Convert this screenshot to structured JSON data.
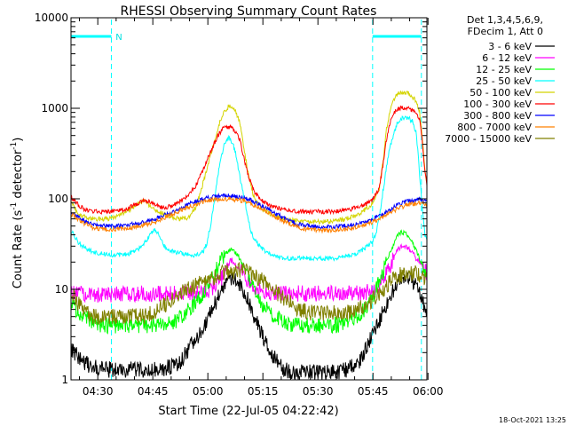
{
  "chart_data": {
    "type": "line",
    "title": "RHESSI Observing Summary Count Rates",
    "xlabel": "Start Time (22-Jul-05 04:22:42)",
    "ylabel_main": "Count Rate (s",
    "ylabel_sup1": "-1",
    "ylabel_mid": " detector",
    "ylabel_sup2": "-1",
    "ylabel_end": ")",
    "y_scale": "log",
    "ylim": [
      1,
      10000
    ],
    "xlim_minutes": [
      0,
      97
    ],
    "x_ticks": [
      {
        "label": "04:30",
        "min": 7.3
      },
      {
        "label": "04:45",
        "min": 22.3
      },
      {
        "label": "05:00",
        "min": 37.3
      },
      {
        "label": "05:15",
        "min": 52.3
      },
      {
        "label": "05:30",
        "min": 67.3
      },
      {
        "label": "05:45",
        "min": 82.3
      },
      {
        "label": "06:00",
        "min": 97.3
      }
    ],
    "y_ticks": [
      {
        "label": "1",
        "v": 1
      },
      {
        "label": "10",
        "v": 10
      },
      {
        "label": "100",
        "v": 100
      },
      {
        "label": "1000",
        "v": 1000
      },
      {
        "label": "10000",
        "v": 10000
      }
    ],
    "legend_header": [
      "Det 1,3,4,5,6,9,",
      "FDecim 1, Att 0"
    ],
    "legend_placement": "top-right outside",
    "flag_label": "N",
    "timestamp": "18-Oct-2021 13:25",
    "night_markers_min": [
      0,
      11,
      82.2,
      95.5
    ],
    "night_bars": [
      [
        0,
        11
      ],
      [
        82.2,
        95.5
      ]
    ],
    "series": [
      {
        "name": "3 - 6 keV",
        "color": "#000000",
        "x": [
          0,
          3,
          6,
          9,
          12,
          15,
          18,
          21,
          24,
          27,
          30,
          33,
          36,
          38,
          40,
          42,
          44,
          46,
          48,
          50,
          52,
          54,
          56,
          58,
          60,
          63,
          66,
          69,
          72,
          75,
          78,
          80,
          82,
          84,
          86,
          88,
          89,
          90,
          91,
          92,
          93,
          94,
          95,
          96,
          97
        ],
        "y": [
          2.2,
          1.6,
          1.4,
          1.3,
          1.3,
          1.3,
          1.3,
          1.3,
          1.3,
          1.4,
          1.6,
          2.5,
          3.5,
          5.5,
          8,
          11,
          13,
          11,
          8,
          5,
          3.2,
          2.2,
          1.6,
          1.3,
          1.2,
          1.2,
          1.2,
          1.2,
          1.2,
          1.3,
          1.5,
          2,
          3,
          4.5,
          7,
          10,
          12,
          14,
          14,
          13,
          12,
          11,
          9,
          7,
          6
        ]
      },
      {
        "name": "6 - 12 keV",
        "color": "#ff00ff",
        "x": [
          0,
          5,
          10,
          15,
          20,
          25,
          30,
          35,
          38,
          40,
          42,
          44,
          46,
          48,
          50,
          55,
          60,
          65,
          70,
          75,
          80,
          82,
          84,
          86,
          88,
          89,
          90,
          91,
          92,
          93,
          94,
          95,
          96,
          97
        ],
        "y": [
          9,
          8.8,
          8.8,
          8.8,
          9,
          9,
          9,
          9,
          10,
          12,
          15,
          20,
          17,
          12,
          10,
          9,
          9,
          9,
          9,
          9,
          9.2,
          9.5,
          11,
          15,
          22,
          27,
          30,
          30,
          28,
          26,
          22,
          20,
          17,
          15
        ]
      },
      {
        "name": "12 - 25 keV",
        "color": "#00ff00",
        "x": [
          0,
          2,
          5,
          8,
          10,
          15,
          20,
          25,
          28,
          30,
          32,
          35,
          38,
          40,
          42,
          44,
          46,
          48,
          50,
          52,
          55,
          58,
          60,
          65,
          70,
          72,
          75,
          78,
          80,
          82,
          84,
          86,
          88,
          89,
          90,
          91,
          92,
          93,
          94,
          95,
          96,
          97
        ],
        "y": [
          7,
          5.5,
          4.5,
          4,
          4,
          4,
          4,
          4,
          4.2,
          5,
          6,
          8,
          12,
          18,
          25,
          28,
          22,
          15,
          10,
          7,
          5,
          4.5,
          4,
          4,
          4,
          4,
          4.2,
          5,
          6,
          8,
          12,
          20,
          32,
          40,
          43,
          42,
          38,
          33,
          27,
          22,
          18,
          15
        ]
      },
      {
        "name": "25 - 50 keV",
        "color": "#00ffff",
        "x": [
          0,
          2,
          4,
          6,
          8,
          10,
          12,
          14,
          16,
          18,
          20,
          21,
          22,
          23,
          24,
          25,
          26,
          28,
          30,
          32,
          34,
          36,
          37,
          38,
          39,
          40,
          41,
          42,
          43,
          44,
          45,
          46,
          47,
          48,
          49,
          50,
          52,
          55,
          58,
          60,
          62,
          65,
          68,
          70,
          72,
          75,
          78,
          80,
          82,
          83,
          84,
          85,
          86,
          86.5,
          87,
          88,
          89,
          90,
          91,
          92,
          93,
          94,
          94.5,
          95,
          95.5,
          96,
          96.5,
          97
        ],
        "y": [
          45,
          33,
          28,
          26,
          25,
          24,
          24,
          24,
          25,
          27,
          33,
          37,
          43,
          45,
          40,
          33,
          28,
          26,
          25,
          24,
          24,
          26,
          32,
          50,
          90,
          180,
          300,
          420,
          470,
          420,
          300,
          180,
          110,
          70,
          45,
          35,
          28,
          24,
          22,
          22,
          22,
          22,
          22,
          22,
          22,
          23,
          25,
          28,
          33,
          40,
          60,
          120,
          220,
          300,
          380,
          520,
          700,
          780,
          790,
          780,
          720,
          550,
          350,
          190,
          110,
          60,
          40,
          35
        ]
      },
      {
        "name": "50 - 100 keV",
        "color": "#d4d400",
        "x": [
          0,
          2,
          4,
          6,
          8,
          10,
          12,
          14,
          16,
          18,
          20,
          22,
          24,
          26,
          28,
          30,
          32,
          34,
          36,
          38,
          40,
          41,
          42,
          43,
          44,
          45,
          46,
          47,
          48,
          49,
          50,
          52,
          55,
          58,
          60,
          62,
          65,
          68,
          70,
          72,
          75,
          78,
          80,
          82,
          84,
          85,
          86,
          87,
          88,
          89,
          90,
          91,
          92,
          93,
          94,
          95,
          95.5,
          96,
          96.5,
          97
        ],
        "y": [
          90,
          68,
          62,
          60,
          60,
          60,
          62,
          68,
          75,
          88,
          95,
          80,
          72,
          66,
          62,
          60,
          62,
          80,
          150,
          300,
          600,
          800,
          950,
          1050,
          1000,
          900,
          700,
          400,
          220,
          140,
          100,
          78,
          65,
          60,
          58,
          57,
          56,
          56,
          56,
          57,
          60,
          66,
          75,
          88,
          130,
          250,
          600,
          950,
          1250,
          1450,
          1500,
          1500,
          1450,
          1350,
          1200,
          900,
          600,
          350,
          200,
          150
        ]
      },
      {
        "name": "100 - 300 keV",
        "color": "#ff0000",
        "x": [
          0,
          2,
          4,
          6,
          8,
          10,
          12,
          14,
          16,
          18,
          20,
          22,
          24,
          26,
          28,
          30,
          32,
          34,
          36,
          38,
          40,
          41,
          42,
          43,
          44,
          45,
          46,
          47,
          48,
          49,
          50,
          52,
          55,
          58,
          60,
          62,
          65,
          68,
          70,
          72,
          75,
          78,
          80,
          82,
          84,
          85,
          86,
          87,
          88,
          89,
          90,
          91,
          92,
          93,
          94,
          95,
          95.5,
          96,
          96.5,
          97
        ],
        "y": [
          105,
          85,
          75,
          72,
          72,
          72,
          73,
          75,
          80,
          88,
          96,
          90,
          82,
          80,
          85,
          95,
          110,
          140,
          210,
          330,
          500,
          570,
          620,
          620,
          600,
          550,
          450,
          300,
          200,
          150,
          120,
          95,
          82,
          76,
          74,
          73,
          72,
          72,
          72,
          73,
          75,
          80,
          85,
          95,
          130,
          230,
          450,
          700,
          880,
          980,
          1020,
          1020,
          1000,
          950,
          880,
          750,
          550,
          320,
          200,
          140
        ]
      },
      {
        "name": "300 - 800 keV",
        "color": "#0000ff",
        "x": [
          0,
          3,
          6,
          9,
          12,
          15,
          18,
          21,
          24,
          27,
          30,
          33,
          36,
          39,
          42,
          44,
          46,
          48,
          50,
          53,
          56,
          59,
          62,
          65,
          68,
          71,
          74,
          77,
          80,
          83,
          86,
          89,
          92,
          95,
          97
        ],
        "y": [
          72,
          58,
          52,
          50,
          50,
          51,
          53,
          57,
          62,
          70,
          80,
          90,
          100,
          106,
          108,
          107,
          104,
          100,
          92,
          80,
          68,
          58,
          52,
          50,
          49,
          49,
          50,
          52,
          55,
          62,
          72,
          85,
          95,
          98,
          96
        ]
      },
      {
        "name": "800 - 7000 keV",
        "color": "#ff8000",
        "x": [
          0,
          3,
          6,
          9,
          12,
          15,
          18,
          21,
          24,
          27,
          30,
          33,
          36,
          39,
          42,
          44,
          46,
          48,
          50,
          53,
          56,
          59,
          62,
          65,
          68,
          71,
          74,
          77,
          80,
          83,
          86,
          89,
          92,
          95,
          97
        ],
        "y": [
          68,
          55,
          48,
          46,
          46,
          47,
          49,
          53,
          58,
          66,
          75,
          84,
          93,
          98,
          100,
          99,
          96,
          92,
          85,
          74,
          63,
          54,
          48,
          46,
          45,
          45,
          46,
          48,
          51,
          57,
          66,
          78,
          87,
          90,
          88
        ]
      },
      {
        "name": "7000 - 15000 keV",
        "color": "#808000",
        "x": [
          0,
          2,
          4,
          6,
          8,
          10,
          12,
          15,
          18,
          20,
          22,
          25,
          28,
          30,
          32,
          35,
          38,
          40,
          42,
          44,
          46,
          48,
          50,
          52,
          55,
          58,
          60,
          62,
          65,
          68,
          70,
          72,
          75,
          78,
          80,
          82,
          84,
          86,
          88,
          89,
          90,
          91,
          92,
          93,
          94,
          95,
          96,
          97
        ],
        "y": [
          9,
          7,
          5.5,
          5,
          5,
          5,
          5,
          5,
          5,
          5,
          5.5,
          6.5,
          8,
          9,
          10,
          11.5,
          13,
          14.5,
          15.5,
          16,
          16,
          15.5,
          14,
          12.5,
          10,
          8,
          7,
          6,
          5.5,
          5.5,
          5.5,
          5.5,
          5.5,
          6,
          6.5,
          7.5,
          9,
          11,
          13,
          14,
          14.5,
          15,
          15,
          15,
          15,
          14.5,
          14,
          13
        ]
      }
    ]
  }
}
